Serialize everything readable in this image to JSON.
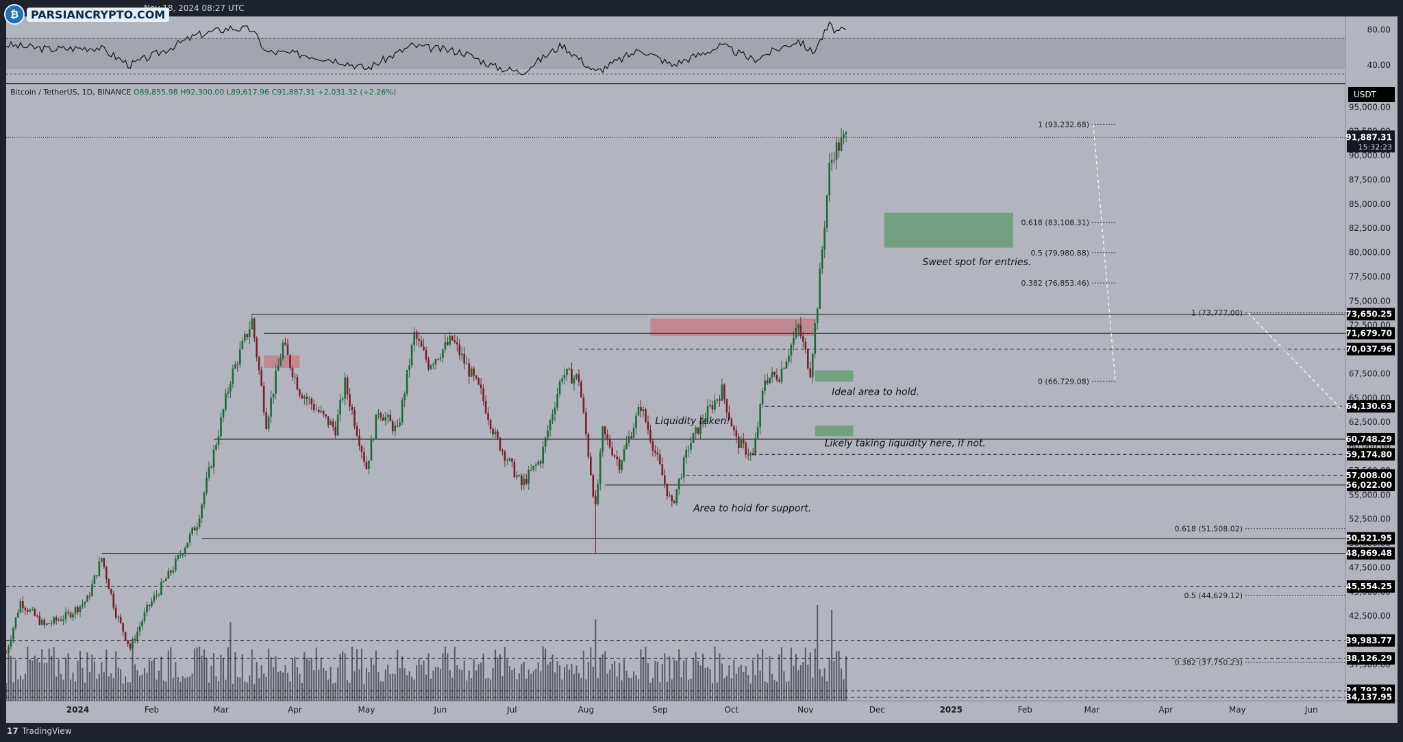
{
  "app": {
    "caption": "Nov 18, 2024 08:27 UTC",
    "logo_text": "PARSIANCRYPTO.COM",
    "footer_brand": "TradingView",
    "currency": "USDT"
  },
  "symbol": {
    "name": "Bitcoin / TetherUS, 1D, BINANCE",
    "ohlc": "O89,855.98 H92,300.00 L89,617.96 C91,887.31 +2,031.32 (+2.26%)"
  },
  "chart_data": {
    "type": "candlestick",
    "colors": {
      "up": "#1d6a38",
      "down": "#7a1f2a",
      "background": "#b2b5be",
      "volume": "#3c3f47",
      "rsi": "#141414",
      "zone_green": "#5d9a6c",
      "zone_red": "#c47a82"
    },
    "x_axis": {
      "start_date": "2023-12-02",
      "end_date": "2025-06-15",
      "ticks": [
        {
          "date": "2024-01-01",
          "label": "2024",
          "bold": true
        },
        {
          "date": "2024-02-01",
          "label": "Feb"
        },
        {
          "date": "2024-03-01",
          "label": "Mar"
        },
        {
          "date": "2024-04-01",
          "label": "Apr"
        },
        {
          "date": "2024-05-01",
          "label": "May"
        },
        {
          "date": "2024-06-01",
          "label": "Jun"
        },
        {
          "date": "2024-07-01",
          "label": "Jul"
        },
        {
          "date": "2024-08-01",
          "label": "Aug"
        },
        {
          "date": "2024-09-01",
          "label": "Sep"
        },
        {
          "date": "2024-10-01",
          "label": "Oct"
        },
        {
          "date": "2024-11-01",
          "label": "Nov"
        },
        {
          "date": "2024-12-01",
          "label": "Dec"
        },
        {
          "date": "2025-01-01",
          "label": "2025",
          "bold": true
        },
        {
          "date": "2025-02-01",
          "label": "Feb"
        },
        {
          "date": "2025-03-01",
          "label": "Mar"
        },
        {
          "date": "2025-04-01",
          "label": "Apr"
        },
        {
          "date": "2025-05-01",
          "label": "May"
        },
        {
          "date": "2025-06-01",
          "label": "Jun"
        }
      ]
    },
    "y_axis": {
      "scale": "linear",
      "range": [
        33750,
        97500
      ],
      "ticks": [
        95000,
        92500,
        90000,
        87500,
        85000,
        82500,
        80000,
        77500,
        75000,
        72500,
        70000,
        67500,
        65000,
        62500,
        60000,
        57500,
        55000,
        52500,
        50000,
        47500,
        45000,
        42500,
        40000,
        37500,
        35000
      ],
      "tick_labels": [
        "95,000.00",
        "92,500.00",
        "90,000.00",
        "87,500.00",
        "85,000.00",
        "82,500.00",
        "80,000.00",
        "77,500.00",
        "75,000.00",
        "72,500.00",
        "70,000.00",
        "67,500.00",
        "65,000.00",
        "62,500.00",
        "60,000.00",
        "57,500.00",
        "55,000.00",
        "52,500.00",
        "50,000.00",
        "47,500.00",
        "45,000.00",
        "42,500.00",
        "40,000.00",
        "37,500.00",
        "35,000.00"
      ],
      "last_price": {
        "value": 91887.31,
        "label": "91,887.31",
        "countdown": "15:32:23"
      }
    },
    "price_path": [
      [
        "2023-12-02",
        38700
      ],
      [
        "2023-12-08",
        44000
      ],
      [
        "2023-12-18",
        41500
      ],
      [
        "2023-12-28",
        42600
      ],
      [
        "2024-01-05",
        44200
      ],
      [
        "2024-01-11",
        48500
      ],
      [
        "2024-01-17",
        42800
      ],
      [
        "2024-01-23",
        39200
      ],
      [
        "2024-01-30",
        43200
      ],
      [
        "2024-02-10",
        47500
      ],
      [
        "2024-02-20",
        52100
      ],
      [
        "2024-02-29",
        61500
      ],
      [
        "2024-03-05",
        67000
      ],
      [
        "2024-03-14",
        73000
      ],
      [
        "2024-03-20",
        62500
      ],
      [
        "2024-03-27",
        70500
      ],
      [
        "2024-04-03",
        65800
      ],
      [
        "2024-04-13",
        63000
      ],
      [
        "2024-04-18",
        61800
      ],
      [
        "2024-04-22",
        66500
      ],
      [
        "2024-05-01",
        57800
      ],
      [
        "2024-05-06",
        63800
      ],
      [
        "2024-05-14",
        61500
      ],
      [
        "2024-05-21",
        71500
      ],
      [
        "2024-05-27",
        68500
      ],
      [
        "2024-06-06",
        71000
      ],
      [
        "2024-06-18",
        65500
      ],
      [
        "2024-06-24",
        61000
      ],
      [
        "2024-07-05",
        56000
      ],
      [
        "2024-07-13",
        58700
      ],
      [
        "2024-07-22",
        67500
      ],
      [
        "2024-07-29",
        67000
      ],
      [
        "2024-08-05",
        53500
      ],
      [
        "2024-08-08",
        61500
      ],
      [
        "2024-08-15",
        58200
      ],
      [
        "2024-08-24",
        64200
      ],
      [
        "2024-09-06",
        53800
      ],
      [
        "2024-09-13",
        60000
      ],
      [
        "2024-09-20",
        63200
      ],
      [
        "2024-09-27",
        65800
      ],
      [
        "2024-10-03",
        60600
      ],
      [
        "2024-10-10",
        58900
      ],
      [
        "2024-10-15",
        67000
      ],
      [
        "2024-10-21",
        67400
      ],
      [
        "2024-10-29",
        72300
      ],
      [
        "2024-11-03",
        67800
      ],
      [
        "2024-11-06",
        74800
      ],
      [
        "2024-11-11",
        88700
      ],
      [
        "2024-11-13",
        90500
      ],
      [
        "2024-11-15",
        91000
      ],
      [
        "2024-11-18",
        91887
      ]
    ],
    "volume_spikes": [
      [
        "2024-08-05",
        0.85
      ],
      [
        "2024-03-05",
        0.82
      ],
      [
        "2024-11-12",
        0.95
      ],
      [
        "2024-11-06",
        1.0
      ]
    ],
    "horizontal_levels": [
      {
        "label": "73,650.25",
        "value": 73650.25,
        "style": "solid",
        "from_date": "2024-03-14"
      },
      {
        "label": "71,679.70",
        "value": 71679.7,
        "style": "solid",
        "from_date": "2024-03-19"
      },
      {
        "label": "70,037.96",
        "value": 70037.96,
        "style": "dashed",
        "from_date": "2024-07-29"
      },
      {
        "label": "64,130.63",
        "value": 64130.63,
        "style": "dashed",
        "from_date": "2024-10-15"
      },
      {
        "label": "60,748.29",
        "value": 60748.29,
        "style": "solid",
        "from_date": "2024-02-27"
      },
      {
        "label": "59,174.80",
        "value": 59174.8,
        "style": "dashed",
        "from_date": "2024-10-10"
      },
      {
        "label": "57,008.00",
        "value": 57008.0,
        "style": "dashed",
        "from_date": "2024-09-12"
      },
      {
        "label": "56,022.00",
        "value": 56022.0,
        "style": "solid",
        "from_date": "2024-08-09"
      },
      {
        "label": "50,521.95",
        "value": 50521.95,
        "style": "solid",
        "from_date": "2024-02-22"
      },
      {
        "label": "48,969.48",
        "value": 48969.48,
        "style": "solid",
        "from_date": "2024-01-11"
      },
      {
        "label": "45,554.25",
        "value": 45554.25,
        "style": "dashed",
        "from_date": "2023-12-02"
      },
      {
        "label": "39,983.77",
        "value": 39983.77,
        "style": "dashed",
        "from_date": "2023-12-02"
      },
      {
        "label": "38,126.29",
        "value": 38126.29,
        "style": "dashed",
        "from_date": "2023-12-02"
      },
      {
        "label": "34,793.20",
        "value": 34793.2,
        "style": "dashed",
        "from_date": "2023-12-02"
      },
      {
        "label": "34,137.95",
        "value": 34137.95,
        "style": "dashed",
        "from_date": "2023-12-02"
      }
    ],
    "fib_upper": [
      {
        "label": "1 (93,232.68)",
        "value": 93232.68
      },
      {
        "label": "0.618 (83,108.31)",
        "value": 83108.31
      },
      {
        "label": "0.5 (79,980.88)",
        "value": 79980.88
      },
      {
        "label": "0.382 (76,853.46)",
        "value": 76853.46
      },
      {
        "label": "0 (66,729.08)",
        "value": 66729.08
      }
    ],
    "fib_lower": [
      {
        "label": "1 (73,777.00)",
        "value": 73777
      },
      {
        "label": "0.618 (51,508.02)",
        "value": 51508.02
      },
      {
        "label": "0.5 (44,629.12)",
        "value": 44629.12
      },
      {
        "label": "0.382 (37,750.23)",
        "value": 37750.23
      }
    ],
    "zones": [
      {
        "kind": "green",
        "from": "2024-12-04",
        "to": "2025-01-27",
        "top": 84100,
        "bottom": 80500
      },
      {
        "kind": "red",
        "from": "2024-08-28",
        "to": "2024-11-05",
        "top": 73200,
        "bottom": 71400
      },
      {
        "kind": "red",
        "from": "2024-03-19",
        "to": "2024-04-03",
        "top": 69400,
        "bottom": 68100
      },
      {
        "kind": "green",
        "from": "2024-11-05",
        "to": "2024-11-21",
        "top": 67850,
        "bottom": 66680
      },
      {
        "kind": "green",
        "from": "2024-11-05",
        "to": "2024-11-21",
        "top": 62150,
        "bottom": 61050
      }
    ],
    "annotations": [
      {
        "text": "Sweet spot for entries.",
        "date": "2024-12-20",
        "value": 78700
      },
      {
        "text": "Ideal area to hold.",
        "date": "2024-11-12",
        "value": 65300
      },
      {
        "text": "Liquidity taken!",
        "date": "2024-08-30",
        "value": 62300
      },
      {
        "text": "Likely taking liquidity here, if not.",
        "date": "2024-11-09",
        "value": 60000
      },
      {
        "text": "Area to hold for support.",
        "date": "2024-09-15",
        "value": 53300
      }
    ],
    "rsi": {
      "ticks": [
        80,
        40
      ],
      "tick_labels": [
        "80.00",
        "40.00"
      ],
      "band": [
        70,
        30
      ],
      "path": [
        [
          "2023-12-02",
          63
        ],
        [
          "2023-12-20",
          58
        ],
        [
          "2024-01-10",
          60
        ],
        [
          "2024-01-23",
          40
        ],
        [
          "2024-02-05",
          55
        ],
        [
          "2024-02-20",
          74
        ],
        [
          "2024-03-05",
          82
        ],
        [
          "2024-03-14",
          80
        ],
        [
          "2024-03-20",
          55
        ],
        [
          "2024-04-05",
          52
        ],
        [
          "2024-04-20",
          45
        ],
        [
          "2024-05-01",
          36
        ],
        [
          "2024-05-20",
          62
        ],
        [
          "2024-06-10",
          55
        ],
        [
          "2024-06-24",
          38
        ],
        [
          "2024-07-05",
          32
        ],
        [
          "2024-07-22",
          63
        ],
        [
          "2024-08-05",
          32
        ],
        [
          "2024-08-24",
          58
        ],
        [
          "2024-09-06",
          40
        ],
        [
          "2024-09-27",
          62
        ],
        [
          "2024-10-10",
          46
        ],
        [
          "2024-10-29",
          68
        ],
        [
          "2024-11-04",
          54
        ],
        [
          "2024-11-11",
          85
        ],
        [
          "2024-11-14",
          78
        ],
        [
          "2024-11-18",
          79
        ]
      ]
    }
  }
}
